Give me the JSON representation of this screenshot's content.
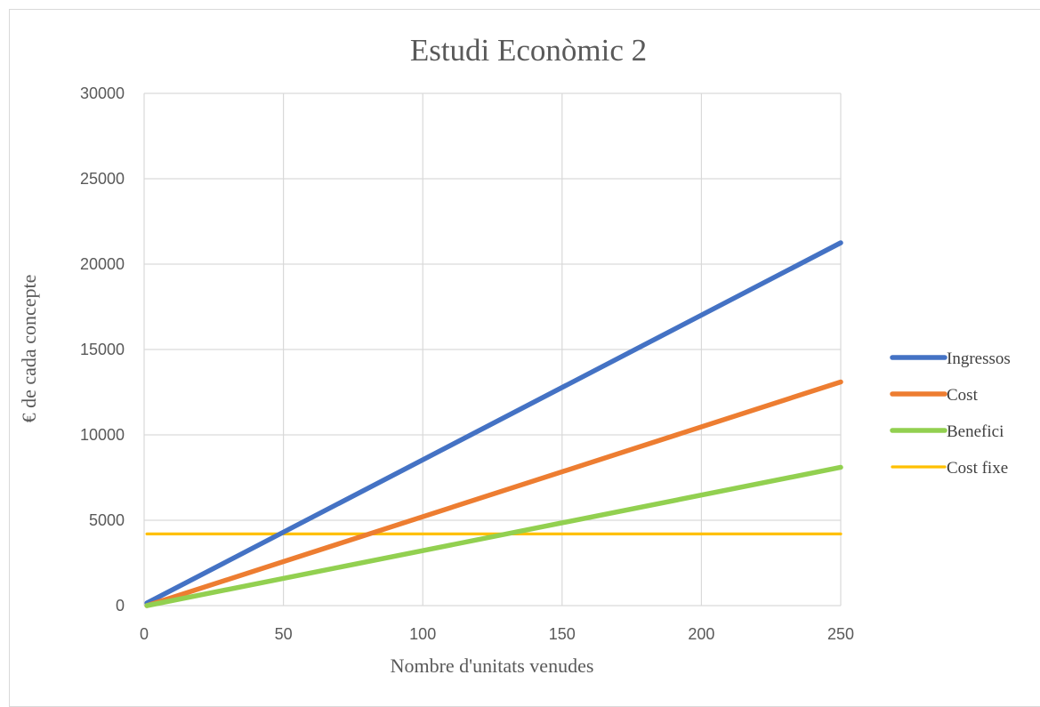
{
  "chart_data": {
    "type": "line",
    "title": "Estudi Econòmic 2",
    "xlabel": "Nombre d'unitats venudes",
    "ylabel": "€ de cada concepte",
    "xlim": [
      0,
      250
    ],
    "ylim": [
      0,
      30000
    ],
    "x_ticks": [
      "0",
      "50",
      "100",
      "150",
      "200",
      "250"
    ],
    "y_ticks": [
      "0",
      "5000",
      "10000",
      "15000",
      "20000",
      "25000",
      "30000"
    ],
    "grid": true,
    "legend_position": "right",
    "x": [
      1,
      250
    ],
    "series": [
      {
        "name": "Ingressos",
        "color": "#4472C4",
        "values": [
          150,
          21250
        ]
      },
      {
        "name": "Cost",
        "color": "#ED7D31",
        "values": [
          0,
          13100
        ]
      },
      {
        "name": "Benefici",
        "color": "#92D050",
        "values": [
          0,
          8100
        ]
      },
      {
        "name": "Cost fixe",
        "color": "#FFC000",
        "values": [
          4200,
          4200
        ]
      }
    ]
  }
}
